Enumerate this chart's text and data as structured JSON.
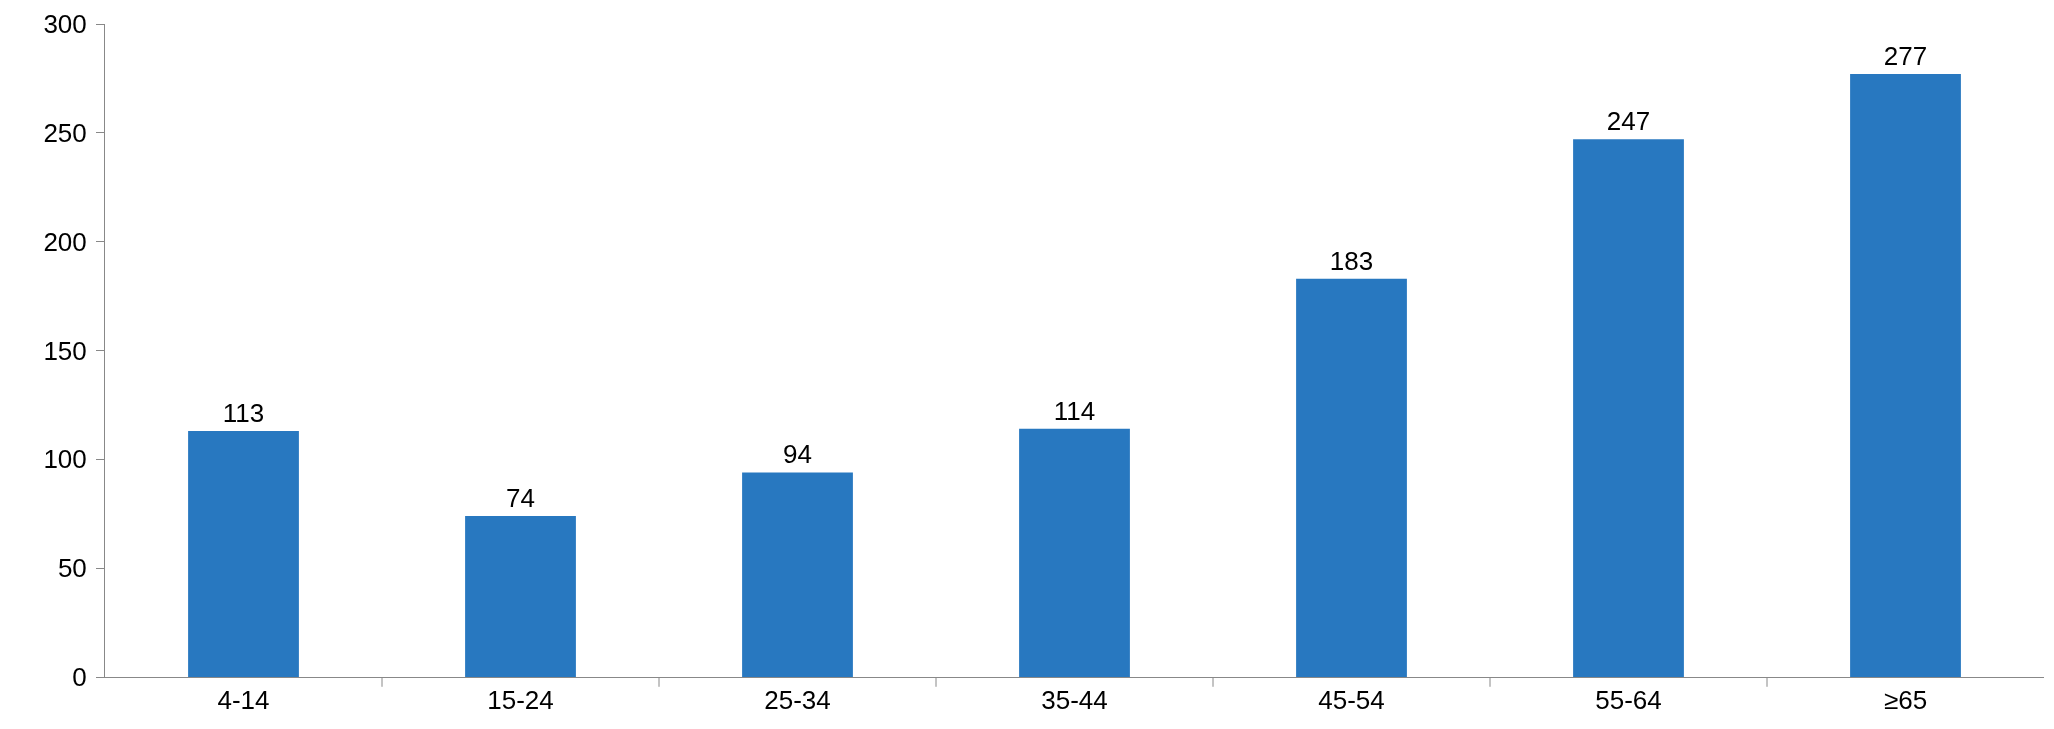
{
  "chart_data": {
    "type": "bar",
    "categories": [
      "4-14",
      "15-24",
      "25-34",
      "35-44",
      "45-54",
      "55-64",
      "≥65"
    ],
    "values": [
      113,
      74,
      94,
      114,
      183,
      247,
      277
    ],
    "color": "#2878c0",
    "ylim": [
      0,
      300
    ],
    "yticks": [
      0,
      50,
      100,
      150,
      200,
      250,
      300
    ],
    "grid": false,
    "data_labels": true
  }
}
